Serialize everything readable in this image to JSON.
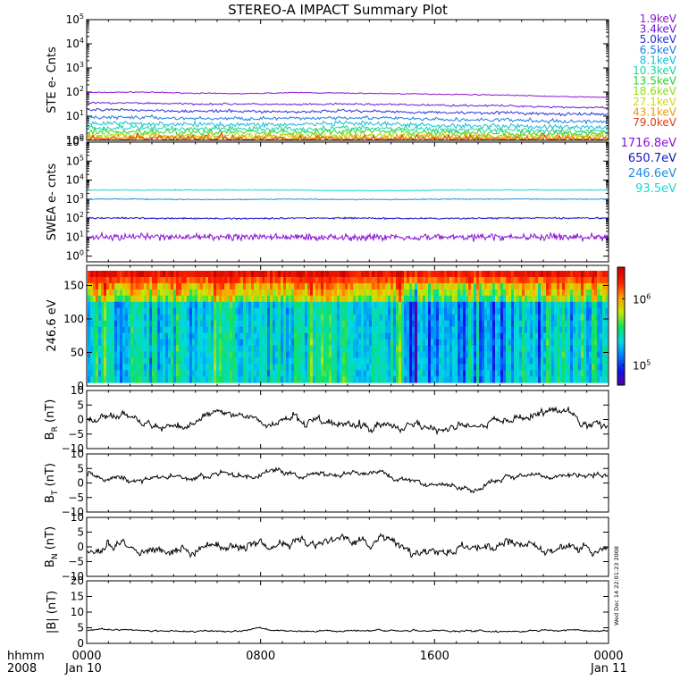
{
  "title": "STEREO-A IMPACT Summary Plot",
  "stamp": "Wed Dec 14 22:01:23 2008",
  "time_axis": {
    "corner_top": "hhmm",
    "corner_bottom": "2008",
    "ticks": [
      {
        "label": "0000",
        "hour": 0,
        "date": "Jan 10"
      },
      {
        "label": "0800",
        "hour": 8,
        "date": ""
      },
      {
        "label": "1600",
        "hour": 16,
        "date": ""
      },
      {
        "label": "0000",
        "hour": 24,
        "date": "Jan 11"
      }
    ]
  },
  "colors": {
    "ste": [
      "#8c14d2",
      "#6a1ad8",
      "#2b2fd6",
      "#1f7ae6",
      "#14c0d8",
      "#16d6a0",
      "#2ccf2c",
      "#8fdc12",
      "#d8d80e",
      "#e89c10",
      "#e23a10"
    ],
    "swea": [
      "#8a12d6",
      "#1414c8",
      "#1f8fe0",
      "#14dccc"
    ],
    "colorbar": [
      "#5a00a8",
      "#1010e8",
      "#0078ff",
      "#00d8e8",
      "#10e060",
      "#c8e800",
      "#ffa000",
      "#ff2000",
      "#c80000"
    ]
  },
  "chart_data": [
    {
      "type": "line",
      "panel": "STE electrons",
      "ylabel": "STE e- Cnts",
      "yscale": "log",
      "ylim": [
        1,
        100000
      ],
      "ytick_exponents": [
        "0",
        "1",
        "2",
        "3",
        "4",
        "5"
      ],
      "yticks_base": "10",
      "series": [
        {
          "name": "1.9keV",
          "values": [
            95,
            100,
            90,
            85,
            95,
            90,
            85,
            80,
            75,
            65,
            60
          ]
        },
        {
          "name": "3.4keV",
          "values": [
            35,
            35,
            32,
            32,
            30,
            32,
            30,
            28,
            27,
            24,
            22
          ]
        },
        {
          "name": "5.0keV",
          "values": [
            18,
            18,
            16,
            16,
            15,
            17,
            15,
            14,
            14,
            12,
            12
          ]
        },
        {
          "name": "6.5keV",
          "values": [
            9,
            9,
            8,
            8,
            8,
            9,
            8,
            7,
            7,
            6,
            6
          ]
        },
        {
          "name": "8.1keV",
          "values": [
            5,
            5,
            4.5,
            4.5,
            4.5,
            5,
            4.5,
            4,
            4,
            3.5,
            3.5
          ]
        },
        {
          "name": "10.3keV",
          "values": [
            3.2,
            3.2,
            3,
            3,
            3,
            3.2,
            3,
            2.8,
            2.8,
            2.5,
            2.5
          ]
        },
        {
          "name": "13.5keV",
          "values": [
            2.3,
            2.3,
            2.2,
            2.2,
            2.2,
            2.3,
            2.2,
            2,
            2,
            1.9,
            1.9
          ]
        },
        {
          "name": "18.6keV",
          "values": [
            1.7,
            1.7,
            1.6,
            1.6,
            1.6,
            1.7,
            1.6,
            1.5,
            1.5,
            1.5,
            1.5
          ]
        },
        {
          "name": "27.1keV",
          "values": [
            1.4,
            1.4,
            1.35,
            1.35,
            1.35,
            1.4,
            1.35,
            1.3,
            1.3,
            1.3,
            1.3
          ]
        },
        {
          "name": "43.1keV",
          "values": [
            1.2,
            1.2,
            1.2,
            1.2,
            1.2,
            1.2,
            1.2,
            1.2,
            1.2,
            1.2,
            1.2
          ]
        },
        {
          "name": "79.0keV",
          "values": [
            1.1,
            1.1,
            1.1,
            1.1,
            1.1,
            1.1,
            1.1,
            1.1,
            1.1,
            1.1,
            1.1
          ]
        }
      ]
    },
    {
      "type": "line",
      "panel": "SWEA electrons",
      "ylabel": "SWEA e- cnts",
      "yscale": "log",
      "ylim": [
        0.5,
        1000000
      ],
      "ytick_exponents": [
        "0",
        "1",
        "2",
        "3",
        "4",
        "5",
        "6"
      ],
      "yticks_base": "10",
      "series": [
        {
          "name": "1716.8eV",
          "values": [
            10,
            10,
            10,
            10,
            10,
            10,
            10,
            10,
            10,
            10,
            10
          ]
        },
        {
          "name": "650.7eV",
          "values": [
            100,
            100,
            95,
            95,
            100,
            100,
            95,
            95,
            100,
            100,
            100
          ]
        },
        {
          "name": "246.6eV",
          "values": [
            1000,
            1000,
            950,
            950,
            1000,
            950,
            950,
            1000,
            1000,
            1000,
            1000
          ]
        },
        {
          "name": "93.5eV",
          "values": [
            3000,
            3000,
            3000,
            3000,
            3000,
            2800,
            2800,
            3000,
            3000,
            3000,
            3000
          ]
        }
      ]
    },
    {
      "type": "heatmap",
      "panel": "pitch angle",
      "ylabel": "246.6 eV",
      "ylim": [
        0,
        180
      ],
      "yticks": [
        "0",
        "50",
        "100",
        "150"
      ],
      "colorbar": {
        "range": [
          50000,
          3000000
        ],
        "scale": "log",
        "ticks": [
          {
            "base": "10",
            "exp": "5",
            "value": 100000
          },
          {
            "base": "10",
            "exp": "6",
            "value": 1000000
          }
        ]
      }
    },
    {
      "type": "line",
      "panel": "BR",
      "ylabel_base": "B",
      "ylabel_sub": "R",
      "ylabel_unit": "(nT)",
      "ylim": [
        -10,
        10
      ],
      "yticks": [
        "10",
        "5",
        "0",
        "−5",
        "−10"
      ],
      "x_hours": [
        0,
        2,
        4,
        6,
        8,
        10,
        12,
        14,
        16,
        18,
        20,
        22,
        24
      ],
      "values": [
        -1,
        0,
        -3,
        2,
        -1,
        1,
        -2,
        -1,
        -3,
        -1,
        2,
        1,
        -1
      ]
    },
    {
      "type": "line",
      "panel": "BT",
      "ylabel_base": "B",
      "ylabel_sub": "T",
      "ylabel_unit": "(nT)",
      "ylim": [
        -10,
        10
      ],
      "yticks": [
        "10",
        "5",
        "0",
        "−5",
        "−10"
      ],
      "x_hours": [
        0,
        2,
        4,
        6,
        8,
        10,
        12,
        14,
        16,
        18,
        20,
        22,
        24
      ],
      "values": [
        3,
        1,
        2,
        3,
        3,
        3,
        3,
        3,
        -1,
        -1,
        2,
        2,
        3
      ]
    },
    {
      "type": "line",
      "panel": "BN",
      "ylabel_base": "B",
      "ylabel_sub": "N",
      "ylabel_unit": "(nT)",
      "ylim": [
        -10,
        10
      ],
      "yticks": [
        "10",
        "5",
        "0",
        "−5",
        "−10"
      ],
      "x_hours": [
        0,
        2,
        4,
        6,
        8,
        10,
        12,
        14,
        16,
        18,
        20,
        22,
        24
      ],
      "values": [
        -1,
        0,
        -2,
        1,
        0,
        0,
        3,
        1,
        -1,
        0,
        1,
        0,
        -1
      ]
    },
    {
      "type": "line",
      "panel": "B magnitude",
      "ylabel": "|B| (nT)",
      "ylim": [
        0,
        20
      ],
      "yticks": [
        "20",
        "15",
        "10",
        "5",
        "0"
      ],
      "x_hours": [
        0,
        2,
        4,
        6,
        8,
        10,
        12,
        14,
        16,
        18,
        20,
        22,
        24
      ],
      "values": [
        4,
        4,
        4,
        4,
        4.5,
        4,
        4,
        4,
        4,
        4,
        4,
        4,
        4
      ]
    }
  ]
}
